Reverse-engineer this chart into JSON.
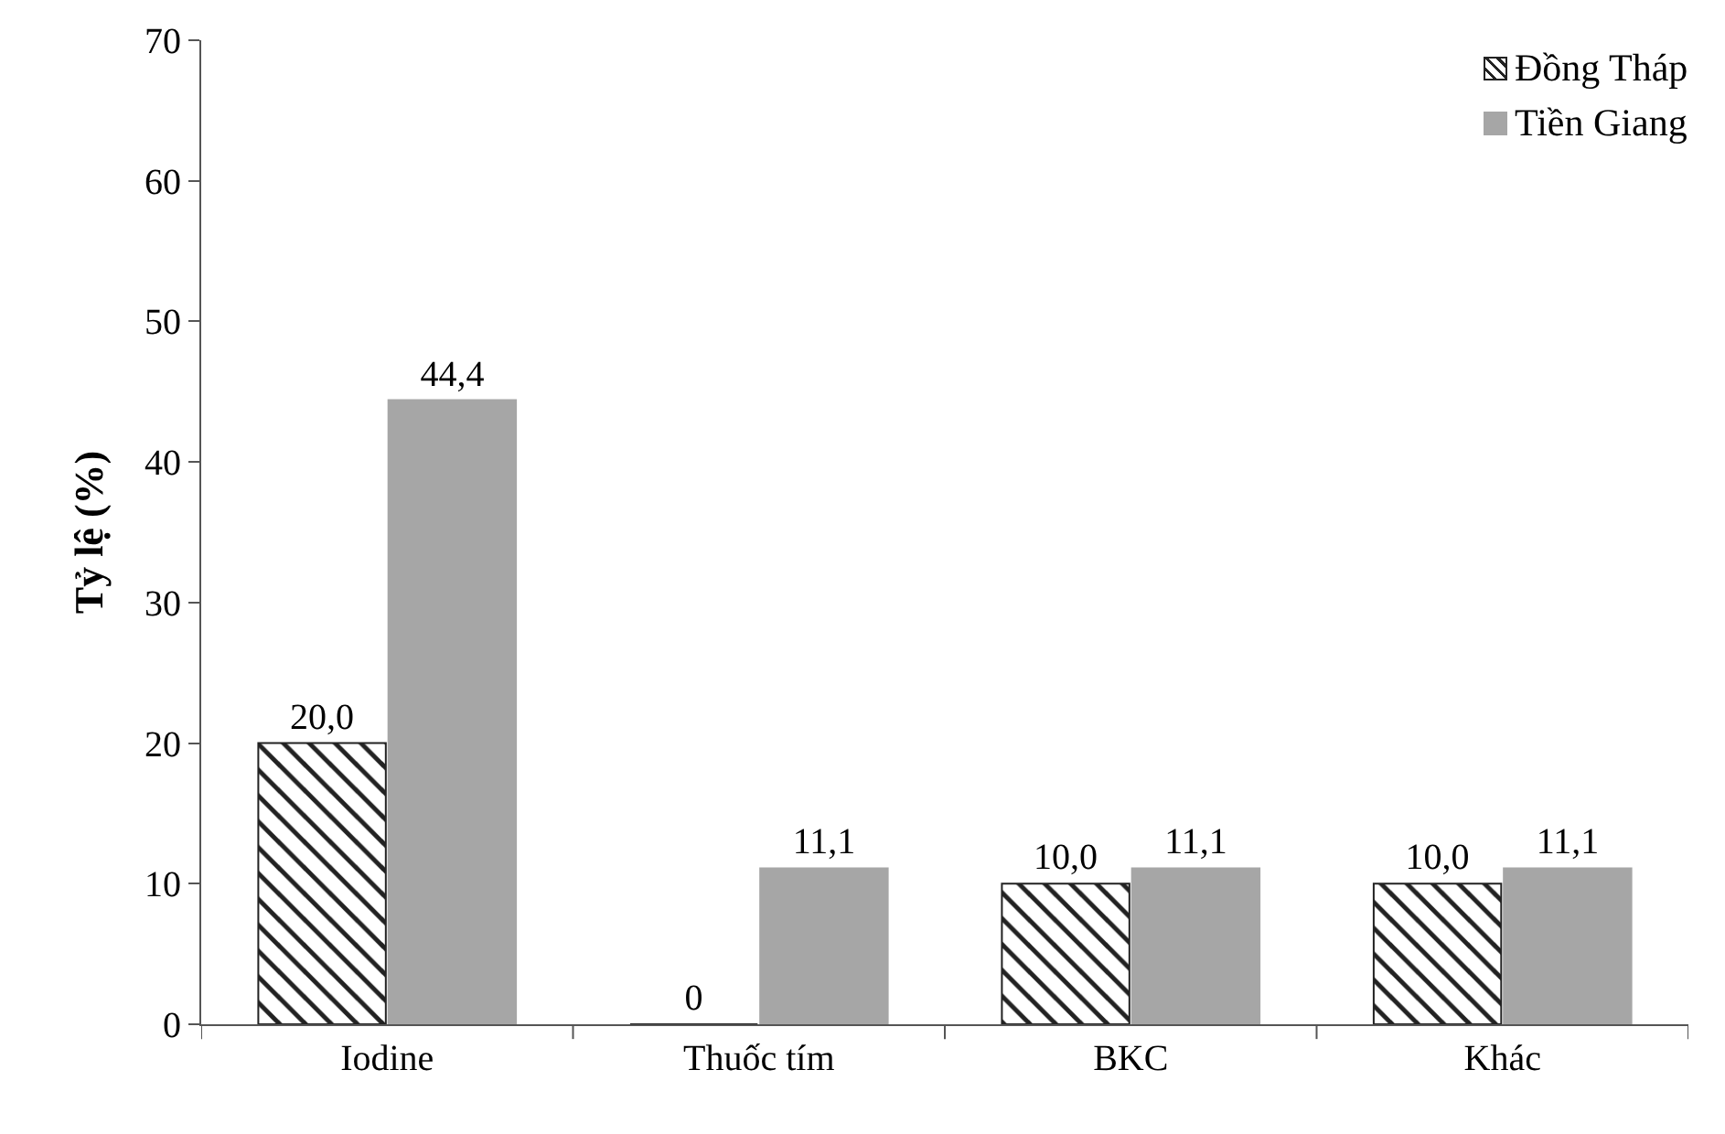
{
  "chart_data": {
    "type": "bar",
    "ylabel": "Tỷ lệ (%)",
    "categories": [
      "Iodine",
      "Thuốc tím",
      "BKC",
      "Khác"
    ],
    "series": [
      {
        "name": "Đồng Tháp",
        "color": "#222222",
        "values": [
          20.0,
          0,
          10.0,
          10.0
        ],
        "value_labels": [
          "20,0",
          "0",
          "10,0",
          "10,0"
        ]
      },
      {
        "name": "Tiền Giang",
        "color": "#a6a6a6",
        "values": [
          44.4,
          11.1,
          11.1,
          11.1
        ],
        "value_labels": [
          "44,4",
          "11,1",
          "11,1",
          "11,1"
        ]
      }
    ],
    "ylim": [
      0,
      70
    ],
    "yticks": [
      0,
      10,
      20,
      30,
      40,
      50,
      60,
      70
    ],
    "grid": false,
    "legend": "top right"
  }
}
